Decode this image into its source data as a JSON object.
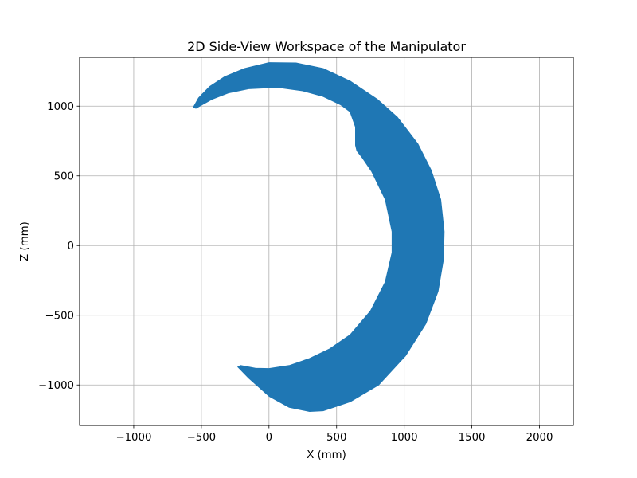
{
  "chart_data": {
    "type": "area",
    "title": "2D Side-View Workspace of the Manipulator",
    "xlabel": "X (mm)",
    "ylabel": "Z (mm)",
    "xlim": [
      -1400,
      2250
    ],
    "ylim": [
      -1290,
      1350
    ],
    "xticks": [
      -1000,
      -500,
      0,
      500,
      1000,
      1500,
      2000
    ],
    "yticks": [
      -1000,
      -500,
      0,
      500,
      1000
    ],
    "xtick_labels": [
      "−1000",
      "−500",
      "0",
      "500",
      "1000",
      "1500",
      "2000"
    ],
    "ytick_labels": [
      "−1000",
      "−500",
      "0",
      "500",
      "1000"
    ],
    "grid": true,
    "legend": "none",
    "region_color": "#1f77b4",
    "workspace_outline": {
      "outer": [
        [
          -560,
          990
        ],
        [
          -520,
          1060
        ],
        [
          -440,
          1140
        ],
        [
          -330,
          1210
        ],
        [
          -180,
          1270
        ],
        [
          0,
          1312
        ],
        [
          200,
          1310
        ],
        [
          400,
          1270
        ],
        [
          600,
          1180
        ],
        [
          800,
          1050
        ],
        [
          950,
          920
        ],
        [
          1100,
          730
        ],
        [
          1200,
          540
        ],
        [
          1270,
          330
        ],
        [
          1295,
          100
        ],
        [
          1290,
          -100
        ],
        [
          1250,
          -330
        ],
        [
          1160,
          -560
        ],
        [
          1010,
          -790
        ],
        [
          810,
          -1000
        ],
        [
          600,
          -1120
        ],
        [
          400,
          -1185
        ],
        [
          300,
          -1190
        ],
        [
          150,
          -1160
        ],
        [
          0,
          -1080
        ],
        [
          -150,
          -950
        ],
        [
          -230,
          -870
        ]
      ],
      "inner": [
        [
          -210,
          -860
        ],
        [
          -100,
          -880
        ],
        [
          0,
          -882
        ],
        [
          150,
          -860
        ],
        [
          300,
          -810
        ],
        [
          450,
          -740
        ],
        [
          600,
          -640
        ],
        [
          750,
          -470
        ],
        [
          860,
          -260
        ],
        [
          910,
          -50
        ],
        [
          910,
          100
        ],
        [
          860,
          330
        ],
        [
          760,
          530
        ],
        [
          690,
          630
        ],
        [
          650,
          680
        ],
        [
          640,
          720
        ],
        [
          640,
          850
        ],
        [
          600,
          960
        ],
        [
          530,
          1010
        ],
        [
          400,
          1070
        ],
        [
          250,
          1110
        ],
        [
          100,
          1130
        ],
        [
          0,
          1132
        ],
        [
          -150,
          1125
        ],
        [
          -300,
          1095
        ],
        [
          -420,
          1050
        ],
        [
          -540,
          985
        ]
      ]
    }
  }
}
